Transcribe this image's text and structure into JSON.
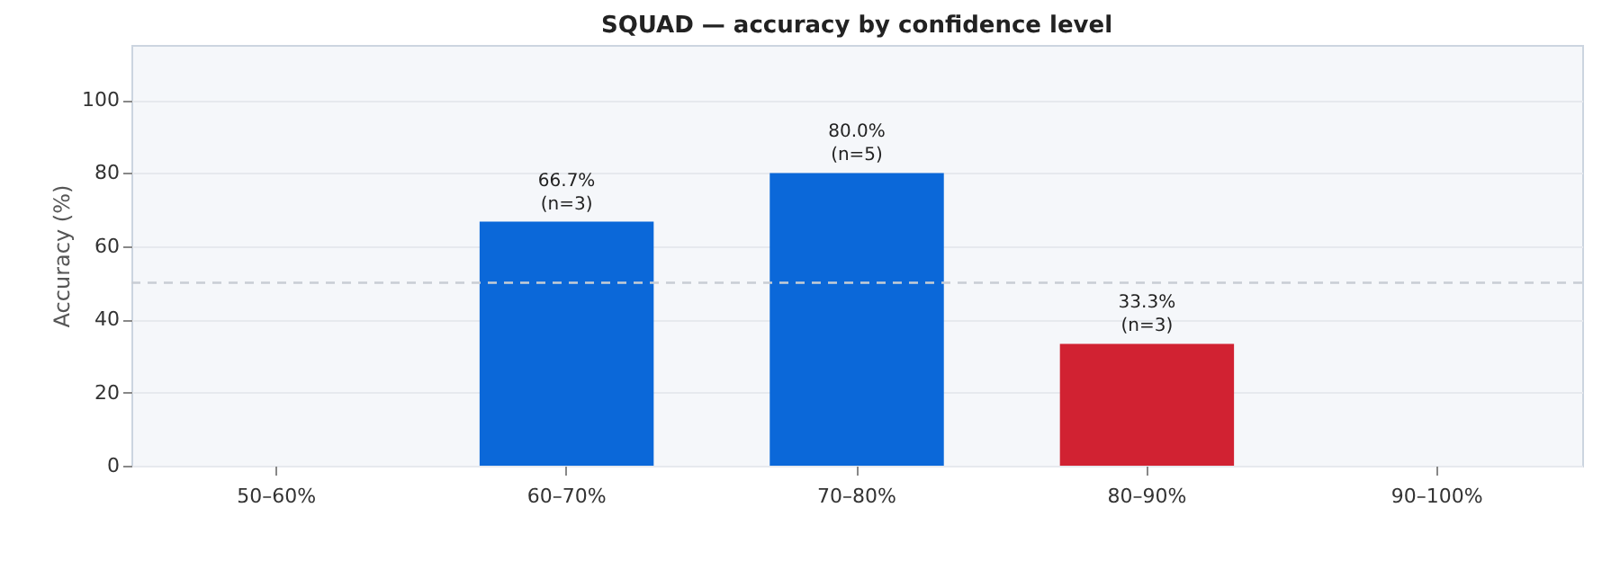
{
  "chart_data": {
    "type": "bar",
    "title": "SQUAD — accuracy by confidence level",
    "ylabel": "Accuracy (%)",
    "categories": [
      "50–60%",
      "60–70%",
      "70–80%",
      "80–90%",
      "90–100%"
    ],
    "values": [
      null,
      66.7,
      80.0,
      33.3,
      null
    ],
    "colors": [
      "#0b68d9",
      "#0b68d9",
      "#0b68d9",
      "#d12232",
      "#0b68d9"
    ],
    "value_labels": [
      null,
      "66.7%\n(n=3)",
      "80.0%\n(n=5)",
      "33.3%\n(n=3)",
      null
    ],
    "ylim": [
      0,
      115
    ],
    "yticks": [
      0,
      20,
      40,
      60,
      80,
      100
    ],
    "grid": "y",
    "ref_lines": [
      {
        "axis": "y",
        "value": 50,
        "label": null,
        "color": "#c8cdd4",
        "line_style": "dashed"
      }
    ]
  }
}
